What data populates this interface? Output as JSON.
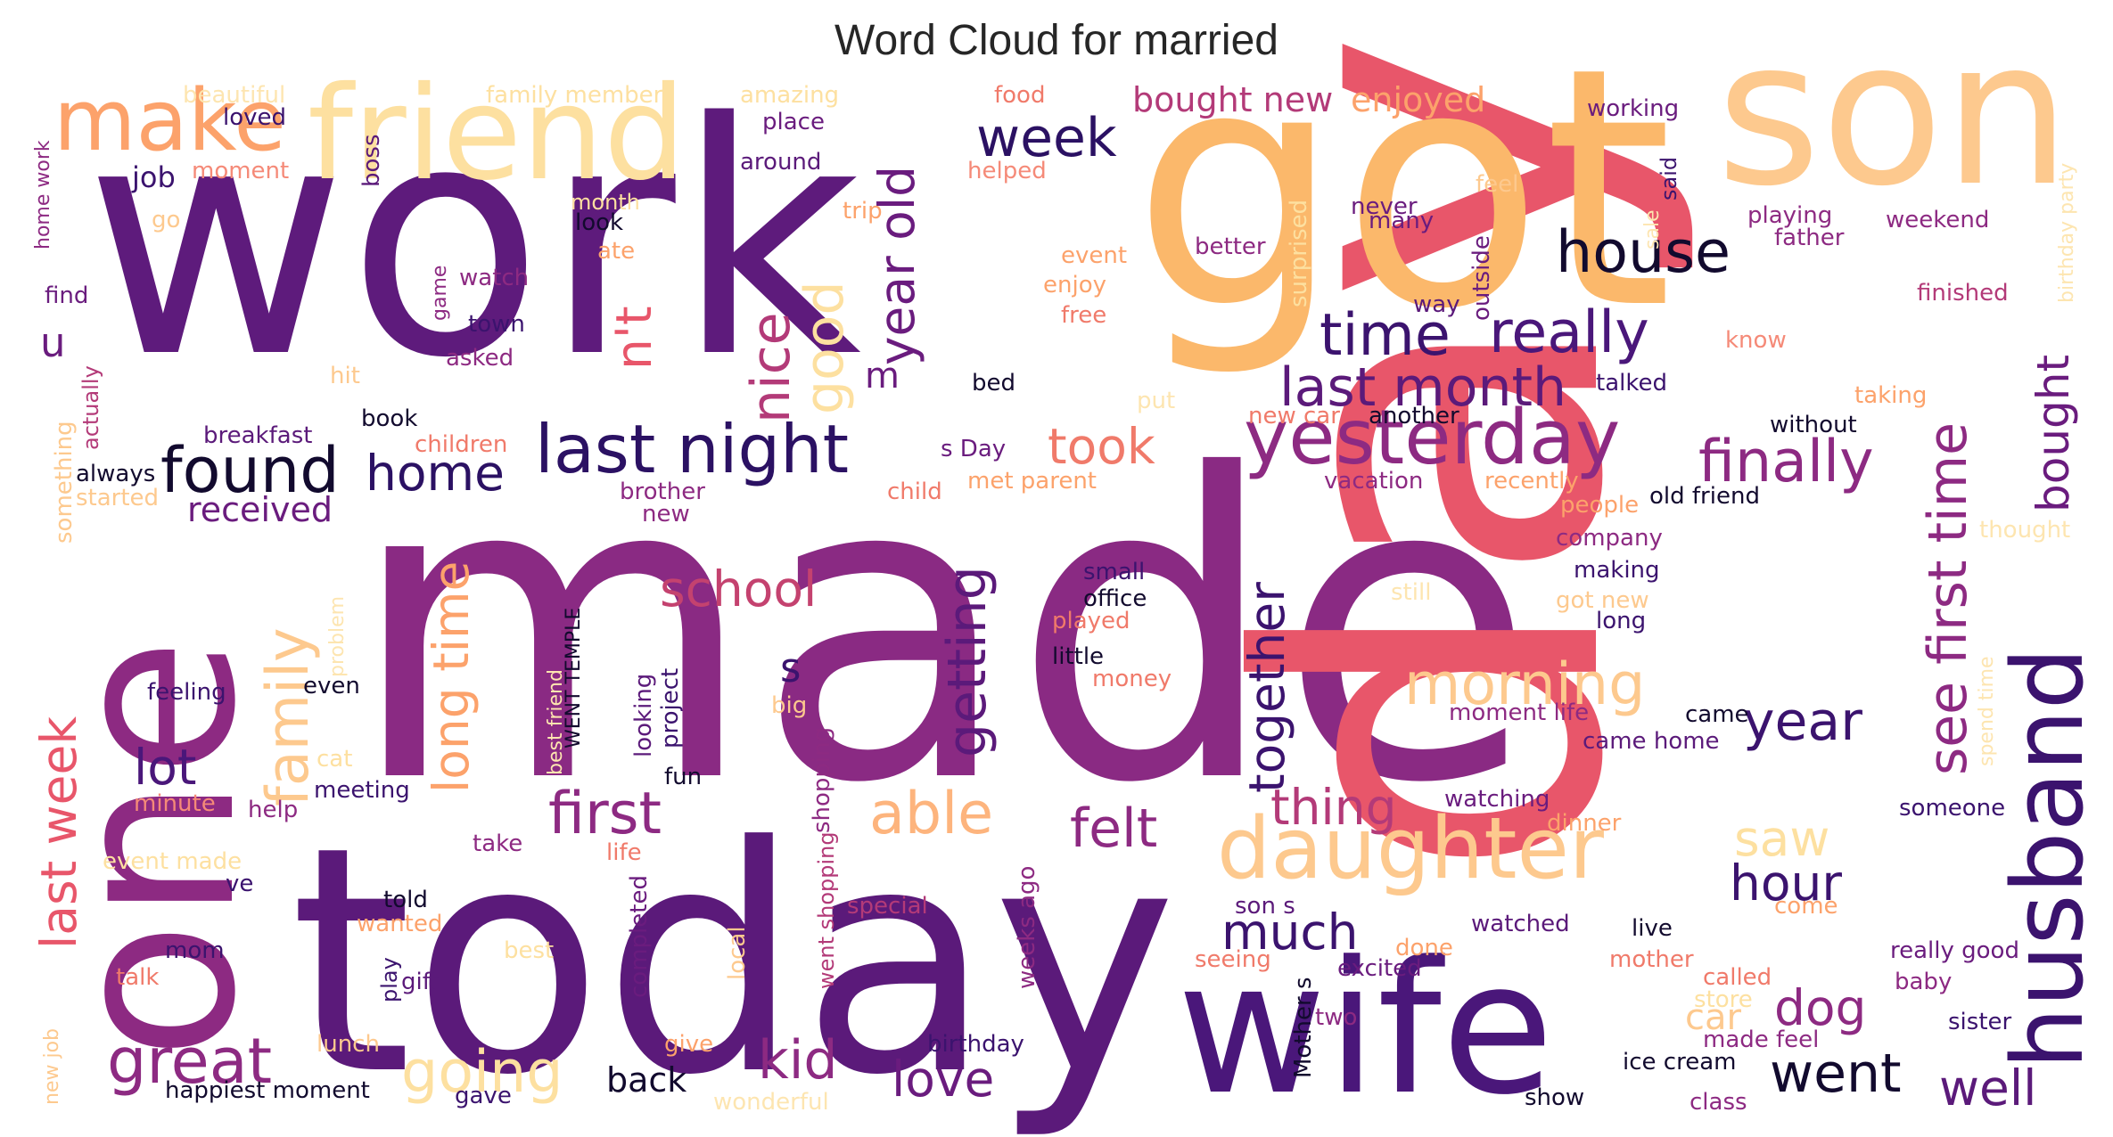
{
  "title": "Word Cloud for married",
  "palette": {
    "dark": "#2b1163",
    "purple": "#5b1a7a",
    "magenta": "#8d2a82",
    "pink": "#b33a78",
    "coral": "#e85a66",
    "peach": "#fca26b",
    "lightpeach": "#fdc98e",
    "pale": "#fde5b0"
  },
  "words": [
    {
      "text": "work",
      "color": "#5e1b7c"
    },
    {
      "text": "made",
      "color": "#8a2a83"
    },
    {
      "text": "day",
      "color": "#e8566a"
    },
    {
      "text": "got",
      "color": "#fbb86b"
    },
    {
      "text": "son",
      "color": "#fdc98e"
    },
    {
      "text": "today",
      "color": "#5b1a7a"
    },
    {
      "text": "one",
      "color": "#8d2a82"
    },
    {
      "text": "wife",
      "color": "#4a177a"
    },
    {
      "text": "friend",
      "color": "#fde0a0"
    },
    {
      "text": "husband",
      "color": "#3b136e"
    },
    {
      "text": "make",
      "color": "#fca26b"
    },
    {
      "text": "week",
      "color": "#2b1163"
    },
    {
      "text": "house",
      "color": "#120a2e"
    },
    {
      "text": "found",
      "color": "#120a2e"
    },
    {
      "text": "home",
      "color": "#2b1163"
    },
    {
      "text": "last night",
      "color": "#2b1163"
    },
    {
      "text": "yesterday",
      "color": "#8d2a82"
    },
    {
      "text": "time",
      "color": "#3b136e"
    },
    {
      "text": "really",
      "color": "#4a177a"
    },
    {
      "text": "last month",
      "color": "#5b1a7a"
    },
    {
      "text": "finally",
      "color": "#8d2a82"
    },
    {
      "text": "daughter",
      "color": "#fdc98e"
    },
    {
      "text": "morning",
      "color": "#fdc98e"
    },
    {
      "text": "took",
      "color": "#f07a6a"
    },
    {
      "text": "nice",
      "color": "#b33a78"
    },
    {
      "text": "good",
      "color": "#fde0a0"
    },
    {
      "text": "year old",
      "color": "#6a1c7e"
    },
    {
      "text": "getting",
      "color": "#5b1a7a"
    },
    {
      "text": "together",
      "color": "#3b136e"
    },
    {
      "text": "school",
      "color": "#c4426f"
    },
    {
      "text": "family",
      "color": "#fdc98e"
    },
    {
      "text": "long time",
      "color": "#fca26b"
    },
    {
      "text": "last week",
      "color": "#e8566a"
    },
    {
      "text": "received",
      "color": "#6a1c7e"
    },
    {
      "text": "first",
      "color": "#8d2a82"
    },
    {
      "text": "able",
      "color": "#fdb47d"
    },
    {
      "text": "felt",
      "color": "#8d2a82"
    },
    {
      "text": "thing",
      "color": "#b33a78"
    },
    {
      "text": "see first time",
      "color": "#8d2a82"
    },
    {
      "text": "year",
      "color": "#3b136e"
    },
    {
      "text": "dog",
      "color": "#8d2a82"
    },
    {
      "text": "went",
      "color": "#120a2e"
    },
    {
      "text": "well",
      "color": "#5b1a7a"
    },
    {
      "text": "saw",
      "color": "#fde0a0"
    },
    {
      "text": "hour",
      "color": "#3b136e"
    },
    {
      "text": "much",
      "color": "#3b136e"
    },
    {
      "text": "kid",
      "color": "#8d2a82"
    },
    {
      "text": "love",
      "color": "#6a1c7e"
    },
    {
      "text": "great",
      "color": "#8d2a82"
    },
    {
      "text": "going",
      "color": "#fde0a0"
    },
    {
      "text": "back",
      "color": "#120a2e"
    },
    {
      "text": "lot",
      "color": "#4a177a"
    },
    {
      "text": "bought",
      "color": "#6a1c7e"
    },
    {
      "text": "bought new",
      "color": "#b33a78"
    },
    {
      "text": "enjoyed",
      "color": "#fca26b"
    },
    {
      "text": "n't",
      "color": "#e8566a"
    },
    {
      "text": "m",
      "color": "#6a1c7e"
    },
    {
      "text": "s",
      "color": "#3b136e"
    },
    {
      "text": "u",
      "color": "#6a1c7e"
    },
    {
      "text": "job",
      "color": "#3b136e"
    },
    {
      "text": "beautiful",
      "color": "#fde5b0"
    },
    {
      "text": "family member",
      "color": "#fde0a0"
    },
    {
      "text": "amazing",
      "color": "#fde0a0"
    },
    {
      "text": "food",
      "color": "#f07a6a"
    },
    {
      "text": "working",
      "color": "#6a1c7e"
    },
    {
      "text": "loved",
      "color": "#3b136e"
    },
    {
      "text": "place",
      "color": "#6a1c7e"
    },
    {
      "text": "around",
      "color": "#5b1a7a"
    },
    {
      "text": "helped",
      "color": "#f58a78"
    },
    {
      "text": "feel",
      "color": "#fdc98e"
    },
    {
      "text": "moment",
      "color": "#f58a78"
    },
    {
      "text": "boss",
      "color": "#5b1a7a"
    },
    {
      "text": "home work",
      "color": "#8d2a82"
    },
    {
      "text": "said",
      "color": "#3b136e"
    },
    {
      "text": "never",
      "color": "#6a1c7e"
    },
    {
      "text": "many",
      "color": "#6a1c7e"
    },
    {
      "text": "playing",
      "color": "#8d2a82"
    },
    {
      "text": "weekend",
      "color": "#8d2a82"
    },
    {
      "text": "father",
      "color": "#8d2a82"
    },
    {
      "text": "finished",
      "color": "#b33a78"
    },
    {
      "text": "birthday party",
      "color": "#fde5b0"
    },
    {
      "text": "look",
      "color": "#120a2e"
    },
    {
      "text": "month",
      "color": "#fde0a0"
    },
    {
      "text": "trip",
      "color": "#fca26b"
    },
    {
      "text": "ate",
      "color": "#fca26b"
    },
    {
      "text": "go",
      "color": "#fdc98e"
    },
    {
      "text": "event",
      "color": "#fca26b"
    },
    {
      "text": "enjoy",
      "color": "#fca26b"
    },
    {
      "text": "free",
      "color": "#f07a6a"
    },
    {
      "text": "better",
      "color": "#8d2a82"
    },
    {
      "text": "surprised",
      "color": "#fde0a0"
    },
    {
      "text": "sale",
      "color": "#fde5b0"
    },
    {
      "text": "outside",
      "color": "#6a1c7e"
    },
    {
      "text": "way",
      "color": "#5b1a7a"
    },
    {
      "text": "know",
      "color": "#f58a78"
    },
    {
      "text": "find",
      "color": "#6a1c7e"
    },
    {
      "text": "watch",
      "color": "#8d2a82"
    },
    {
      "text": "game",
      "color": "#8d2a82"
    },
    {
      "text": "town",
      "color": "#3b136e"
    },
    {
      "text": "asked",
      "color": "#8d2a82"
    },
    {
      "text": "actually",
      "color": "#b33a78"
    },
    {
      "text": "hit",
      "color": "#fdc98e"
    },
    {
      "text": "bed",
      "color": "#120a2e"
    },
    {
      "text": "put",
      "color": "#fde5b0"
    },
    {
      "text": "talked",
      "color": "#3b136e"
    },
    {
      "text": "taking",
      "color": "#fca26b"
    },
    {
      "text": "another",
      "color": "#120a2e"
    },
    {
      "text": "without",
      "color": "#120a2e"
    },
    {
      "text": "something",
      "color": "#fdc98e"
    },
    {
      "text": "book",
      "color": "#120a2e"
    },
    {
      "text": "breakfast",
      "color": "#5b1a7a"
    },
    {
      "text": "children",
      "color": "#f07a6a"
    },
    {
      "text": "new car",
      "color": "#f07a6a"
    },
    {
      "text": "always",
      "color": "#120a2e"
    },
    {
      "text": "s Day",
      "color": "#6a1c7e"
    },
    {
      "text": "met parent",
      "color": "#fca26b"
    },
    {
      "text": "vacation",
      "color": "#8d2a82"
    },
    {
      "text": "recently",
      "color": "#fca26b"
    },
    {
      "text": "old friend",
      "color": "#120a2e"
    },
    {
      "text": "started",
      "color": "#fdc98e"
    },
    {
      "text": "brother",
      "color": "#8d2a82"
    },
    {
      "text": "child",
      "color": "#f07a6a"
    },
    {
      "text": "new",
      "color": "#8d2a82"
    },
    {
      "text": "people",
      "color": "#fca26b"
    },
    {
      "text": "thought",
      "color": "#fde5b0"
    },
    {
      "text": "company",
      "color": "#8d2a82"
    },
    {
      "text": "making",
      "color": "#3b136e"
    },
    {
      "text": "small",
      "color": "#3b136e"
    },
    {
      "text": "office",
      "color": "#120a2e"
    },
    {
      "text": "still",
      "color": "#fde5b0"
    },
    {
      "text": "got new",
      "color": "#fdc98e"
    },
    {
      "text": "long",
      "color": "#3b136e"
    },
    {
      "text": "played",
      "color": "#f07a6a"
    },
    {
      "text": "problem",
      "color": "#fde5b0"
    },
    {
      "text": "best friend",
      "color": "#fde5b0"
    },
    {
      "text": "WENT TEMPLE",
      "color": "#120a2e"
    },
    {
      "text": "little",
      "color": "#120a2e"
    },
    {
      "text": "money",
      "color": "#f07a6a"
    },
    {
      "text": "feeling",
      "color": "#3b136e"
    },
    {
      "text": "even",
      "color": "#120a2e"
    },
    {
      "text": "looking",
      "color": "#5b1a7a"
    },
    {
      "text": "project",
      "color": "#3b136e"
    },
    {
      "text": "big",
      "color": "#fdc98e"
    },
    {
      "text": "moment life",
      "color": "#8d2a82"
    },
    {
      "text": "came",
      "color": "#120a2e"
    },
    {
      "text": "came home",
      "color": "#5b1a7a"
    },
    {
      "text": "spend time",
      "color": "#fde5b0"
    },
    {
      "text": "fun",
      "color": "#120a2e"
    },
    {
      "text": "cat",
      "color": "#fde0a0"
    },
    {
      "text": "meeting",
      "color": "#3b136e"
    },
    {
      "text": "minute",
      "color": "#f58a78"
    },
    {
      "text": "help",
      "color": "#8d2a82"
    },
    {
      "text": "shopping",
      "color": "#8d2a82"
    },
    {
      "text": "watching",
      "color": "#6a1c7e"
    },
    {
      "text": "dinner",
      "color": "#fca26b"
    },
    {
      "text": "someone",
      "color": "#3b136e"
    },
    {
      "text": "event made",
      "color": "#fde0a0"
    },
    {
      "text": "take",
      "color": "#8d2a82"
    },
    {
      "text": "life",
      "color": "#f07a6a"
    },
    {
      "text": "ve",
      "color": "#3b136e"
    },
    {
      "text": "told",
      "color": "#120a2e"
    },
    {
      "text": "wanted",
      "color": "#fca26b"
    },
    {
      "text": "completed",
      "color": "#6a1c7e"
    },
    {
      "text": "went shopping",
      "color": "#b33a78"
    },
    {
      "text": "special",
      "color": "#b33a78"
    },
    {
      "text": "weeks ago",
      "color": "#8d2a82"
    },
    {
      "text": "son s",
      "color": "#5b1a7a"
    },
    {
      "text": "done",
      "color": "#fca26b"
    },
    {
      "text": "watched",
      "color": "#5b1a7a"
    },
    {
      "text": "live",
      "color": "#120a2e"
    },
    {
      "text": "come",
      "color": "#fca26b"
    },
    {
      "text": "really good",
      "color": "#6a1c7e"
    },
    {
      "text": "mom",
      "color": "#3b136e"
    },
    {
      "text": "best",
      "color": "#fde0a0"
    },
    {
      "text": "play",
      "color": "#3b136e"
    },
    {
      "text": "gift",
      "color": "#5b1a7a"
    },
    {
      "text": "local",
      "color": "#fdc98e"
    },
    {
      "text": "seeing",
      "color": "#f07a6a"
    },
    {
      "text": "excited",
      "color": "#6a1c7e"
    },
    {
      "text": "mother",
      "color": "#f07a6a"
    },
    {
      "text": "called",
      "color": "#f07a6a"
    },
    {
      "text": "baby",
      "color": "#8d2a82"
    },
    {
      "text": "talk",
      "color": "#f07a6a"
    },
    {
      "text": "store",
      "color": "#fde0a0"
    },
    {
      "text": "car",
      "color": "#fdc98e"
    },
    {
      "text": "sister",
      "color": "#3b136e"
    },
    {
      "text": "made feel",
      "color": "#8d2a82"
    },
    {
      "text": "new job",
      "color": "#fdc98e"
    },
    {
      "text": "lunch",
      "color": "#fdc98e"
    },
    {
      "text": "birthday",
      "color": "#3b136e"
    },
    {
      "text": "give",
      "color": "#fca26b"
    },
    {
      "text": "Mother s",
      "color": "#120a2e"
    },
    {
      "text": "two",
      "color": "#8d2a82"
    },
    {
      "text": "ice cream",
      "color": "#120a2e"
    },
    {
      "text": "happiest moment",
      "color": "#120a2e"
    },
    {
      "text": "gave",
      "color": "#3b136e"
    },
    {
      "text": "wonderful",
      "color": "#fde5b0"
    },
    {
      "text": "show",
      "color": "#120a2e"
    },
    {
      "text": "class",
      "color": "#8d2a82"
    }
  ]
}
